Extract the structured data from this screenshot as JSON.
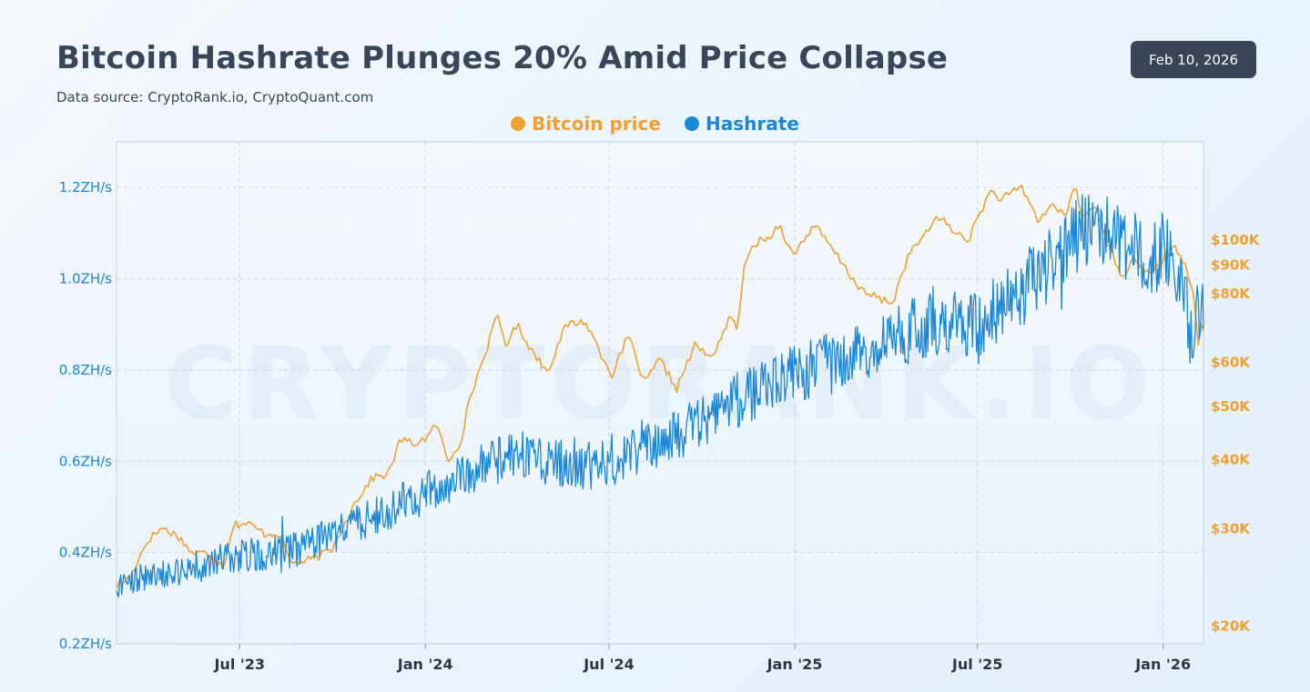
{
  "header": {
    "title": "Bitcoin Hashrate Plunges 20% Amid Price Collapse",
    "subtitle": "Data source: CryptoRank.io, CryptoQuant.com",
    "date_badge": "Feb 10, 2026"
  },
  "watermark": "CRYPTORANK.IO",
  "colors": {
    "price": "#f0a030",
    "hashrate": "#1a87d9",
    "grid": "#c9d2de",
    "axis_left": "#1d86d6",
    "axis_right": "#f0a030",
    "badge_bg": "#3b4356"
  },
  "chart_data": {
    "type": "line",
    "title": "Bitcoin Hashrate Plunges 20% Amid Price Collapse",
    "legend_position": "top-center",
    "legend": [
      "Bitcoin price",
      "Hashrate"
    ],
    "x_start": "2023-03-01",
    "x_end": "2026-02-10",
    "x_ticks": [
      {
        "date": "2023-07-01",
        "label": "Jul '23"
      },
      {
        "date": "2024-01-01",
        "label": "Jan '24"
      },
      {
        "date": "2024-07-01",
        "label": "Jul '24"
      },
      {
        "date": "2025-01-01",
        "label": "Jan '25"
      },
      {
        "date": "2025-07-01",
        "label": "Jul '25"
      },
      {
        "date": "2026-01-01",
        "label": "Jan '26"
      }
    ],
    "y_left": {
      "label": "Hashrate",
      "unit": "ZH/s",
      "range": [
        0.2,
        1.3
      ],
      "ticks": [
        {
          "value": 0.2,
          "label": "0.2ZH/s"
        },
        {
          "value": 0.4,
          "label": "0.4ZH/s"
        },
        {
          "value": 0.6,
          "label": "0.6ZH/s"
        },
        {
          "value": 0.8,
          "label": "0.8ZH/s"
        },
        {
          "value": 1.0,
          "label": "1.0ZH/s"
        },
        {
          "value": 1.2,
          "label": "1.2ZH/s"
        }
      ]
    },
    "y_right": {
      "label": "Bitcoin price",
      "scale": "log",
      "range": [
        18500,
        150000
      ],
      "ticks": [
        {
          "value": 20000,
          "label": "$20K"
        },
        {
          "value": 30000,
          "label": "$30K"
        },
        {
          "value": 40000,
          "label": "$40K"
        },
        {
          "value": 50000,
          "label": "$50K"
        },
        {
          "value": 60000,
          "label": "$60K"
        },
        {
          "value": 80000,
          "label": "$80K"
        },
        {
          "value": 90000,
          "label": "$90K"
        },
        {
          "value": 100000,
          "label": "$100K"
        }
      ]
    },
    "series": [
      {
        "name": "Bitcoin price",
        "axis": "right",
        "points": [
          [
            "2023-03-01",
            23500
          ],
          [
            "2023-03-15",
            24500
          ],
          [
            "2023-04-01",
            28500
          ],
          [
            "2023-04-15",
            30000
          ],
          [
            "2023-05-01",
            29000
          ],
          [
            "2023-05-15",
            27000
          ],
          [
            "2023-06-01",
            27000
          ],
          [
            "2023-06-15",
            25500
          ],
          [
            "2023-06-25",
            30500
          ],
          [
            "2023-07-10",
            30500
          ],
          [
            "2023-07-25",
            29300
          ],
          [
            "2023-08-10",
            29300
          ],
          [
            "2023-08-20",
            26000
          ],
          [
            "2023-09-01",
            26000
          ],
          [
            "2023-09-15",
            26500
          ],
          [
            "2023-10-01",
            27500
          ],
          [
            "2023-10-24",
            33500
          ],
          [
            "2023-11-10",
            37000
          ],
          [
            "2023-11-25",
            37500
          ],
          [
            "2023-12-08",
            43500
          ],
          [
            "2023-12-20",
            42500
          ],
          [
            "2024-01-05",
            44000
          ],
          [
            "2024-01-12",
            46500
          ],
          [
            "2024-01-23",
            39500
          ],
          [
            "2024-02-05",
            43000
          ],
          [
            "2024-02-15",
            52000
          ],
          [
            "2024-02-28",
            61000
          ],
          [
            "2024-03-13",
            73000
          ],
          [
            "2024-03-20",
            64000
          ],
          [
            "2024-04-01",
            70000
          ],
          [
            "2024-04-15",
            63000
          ],
          [
            "2024-05-01",
            57500
          ],
          [
            "2024-05-20",
            70000
          ],
          [
            "2024-06-07",
            71000
          ],
          [
            "2024-06-25",
            61000
          ],
          [
            "2024-07-05",
            56500
          ],
          [
            "2024-07-20",
            67000
          ],
          [
            "2024-08-05",
            54500
          ],
          [
            "2024-08-20",
            60500
          ],
          [
            "2024-09-06",
            53500
          ],
          [
            "2024-09-25",
            64500
          ],
          [
            "2024-10-10",
            60500
          ],
          [
            "2024-10-29",
            72000
          ],
          [
            "2024-11-05",
            69000
          ],
          [
            "2024-11-12",
            88000
          ],
          [
            "2024-11-22",
            98500
          ],
          [
            "2024-12-05",
            100000
          ],
          [
            "2024-12-17",
            106500
          ],
          [
            "2024-12-30",
            93000
          ],
          [
            "2025-01-20",
            106000
          ],
          [
            "2025-02-05",
            97000
          ],
          [
            "2025-02-25",
            86000
          ],
          [
            "2025-03-10",
            80000
          ],
          [
            "2025-04-08",
            76500
          ],
          [
            "2025-04-25",
            94500
          ],
          [
            "2025-05-15",
            104000
          ],
          [
            "2025-05-22",
            111000
          ],
          [
            "2025-06-05",
            104000
          ],
          [
            "2025-06-22",
            99500
          ],
          [
            "2025-07-14",
            122000
          ],
          [
            "2025-07-25",
            118000
          ],
          [
            "2025-08-14",
            124000
          ],
          [
            "2025-08-30",
            108000
          ],
          [
            "2025-09-15",
            116000
          ],
          [
            "2025-09-25",
            109000
          ],
          [
            "2025-10-06",
            125000
          ],
          [
            "2025-10-12",
            110000
          ],
          [
            "2025-10-27",
            114500
          ],
          [
            "2025-11-05",
            101000
          ],
          [
            "2025-11-21",
            84000
          ],
          [
            "2025-12-03",
            93000
          ],
          [
            "2025-12-18",
            85500
          ],
          [
            "2026-01-05",
            93500
          ],
          [
            "2026-01-14",
            96500
          ],
          [
            "2026-01-25",
            88000
          ],
          [
            "2026-02-01",
            77000
          ],
          [
            "2026-02-05",
            63000
          ],
          [
            "2026-02-07",
            70000
          ],
          [
            "2026-02-10",
            69000
          ]
        ]
      },
      {
        "name": "Hashrate",
        "axis": "left",
        "points": [
          [
            "2023-03-01",
            0.33
          ],
          [
            "2023-04-01",
            0.35
          ],
          [
            "2023-05-01",
            0.36
          ],
          [
            "2023-06-01",
            0.38
          ],
          [
            "2023-07-01",
            0.39
          ],
          [
            "2023-08-01",
            0.4
          ],
          [
            "2023-09-01",
            0.41
          ],
          [
            "2023-10-01",
            0.44
          ],
          [
            "2023-11-01",
            0.47
          ],
          [
            "2023-12-01",
            0.5
          ],
          [
            "2024-01-01",
            0.53
          ],
          [
            "2024-02-01",
            0.56
          ],
          [
            "2024-03-01",
            0.59
          ],
          [
            "2024-04-01",
            0.62
          ],
          [
            "2024-05-01",
            0.6
          ],
          [
            "2024-06-01",
            0.59
          ],
          [
            "2024-07-01",
            0.6
          ],
          [
            "2024-08-01",
            0.63
          ],
          [
            "2024-09-01",
            0.65
          ],
          [
            "2024-10-01",
            0.69
          ],
          [
            "2024-11-01",
            0.73
          ],
          [
            "2024-12-01",
            0.77
          ],
          [
            "2025-01-01",
            0.79
          ],
          [
            "2025-02-01",
            0.81
          ],
          [
            "2025-03-01",
            0.83
          ],
          [
            "2025-04-01",
            0.86
          ],
          [
            "2025-05-01",
            0.89
          ],
          [
            "2025-06-01",
            0.91
          ],
          [
            "2025-07-01",
            0.9
          ],
          [
            "2025-08-01",
            0.95
          ],
          [
            "2025-09-01",
            1.01
          ],
          [
            "2025-10-01",
            1.08
          ],
          [
            "2025-10-25",
            1.13
          ],
          [
            "2025-11-10",
            1.1
          ],
          [
            "2025-12-01",
            1.06
          ],
          [
            "2025-12-20",
            1.05
          ],
          [
            "2026-01-10",
            1.05
          ],
          [
            "2026-01-24",
            0.99
          ],
          [
            "2026-01-27",
            0.84
          ],
          [
            "2026-02-02",
            0.93
          ],
          [
            "2026-02-10",
            0.95
          ]
        ]
      }
    ]
  }
}
